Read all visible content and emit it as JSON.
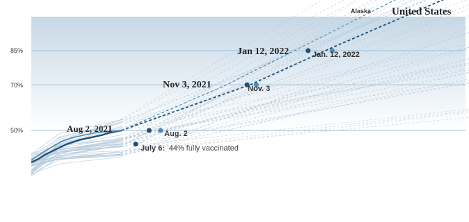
{
  "chart_data": {
    "type": "line",
    "y_ticks": [
      {
        "label": "85%",
        "value": 85
      },
      {
        "label": "70%",
        "value": 70
      },
      {
        "label": "50%",
        "value": 50
      }
    ],
    "ylim": [
      28,
      104
    ],
    "grid": true,
    "series": [
      {
        "name": "United States",
        "role": "dark",
        "color": "#1f4e79",
        "actual": [
          [
            0,
            36
          ],
          [
            10,
            37.5
          ],
          [
            20,
            39.5
          ],
          [
            30,
            41
          ],
          [
            40,
            42.5
          ],
          [
            50,
            44
          ],
          [
            60,
            45
          ],
          [
            70,
            46
          ],
          [
            85,
            47
          ],
          [
            100,
            48
          ],
          [
            110,
            49
          ],
          [
            127,
            50
          ]
        ],
        "projection": [
          [
            127,
            50
          ],
          [
            308,
            70
          ],
          [
            425,
            86.5
          ],
          [
            600,
            110
          ]
        ]
      },
      {
        "name": "Alaska",
        "role": "light",
        "color": "#4a8db5",
        "actual": [
          [
            0,
            37
          ],
          [
            10,
            39
          ],
          [
            20,
            41
          ],
          [
            30,
            43
          ],
          [
            45,
            45.5
          ],
          [
            60,
            47
          ],
          [
            75,
            48
          ],
          [
            90,
            49
          ],
          [
            110,
            49.5
          ],
          [
            127,
            50
          ]
        ],
        "projection": [
          [
            127,
            50
          ],
          [
            275,
            70
          ],
          [
            380,
            86.5
          ],
          [
            530,
            110
          ]
        ]
      }
    ],
    "points": [
      {
        "label": "Aug 2, 2021",
        "x": 166,
        "y": 50,
        "style": "serif"
      },
      {
        "label": "Aug. 2",
        "x": 182,
        "y": 50,
        "style": "sans"
      },
      {
        "label": "Nov 3, 2021",
        "x": 304,
        "y": 70,
        "style": "serif"
      },
      {
        "label": "Nov. 3",
        "x": 317,
        "y": 70,
        "style": "sans"
      },
      {
        "label": "Jan 12, 2022",
        "x": 390,
        "y": 85,
        "style": "serif"
      },
      {
        "label": "Jan. 12, 2022",
        "x": 424,
        "y": 85,
        "style": "sans"
      }
    ],
    "today": {
      "date_label": "July 6:",
      "text": "44% fully vaccinated",
      "x": 147,
      "y": 44
    }
  },
  "labels": {
    "united_states": "United States",
    "alaska": "Alaska",
    "aug2_serif": "Aug 2, 2021",
    "aug2_sans": "Aug. 2",
    "nov3_serif": "Nov 3, 2021",
    "nov3_sans": "Nov. 3",
    "jan12_serif": "Jan 12, 2022",
    "jan12_sans": "Jan. 12, 2022",
    "today_date": "July 6:",
    "today_text": "44% fully vaccinated"
  },
  "colors": {
    "band_top": "#c6d8e6",
    "band_bottom": "#ffffff",
    "grid": "#9fbbd0",
    "dark_series": "#1f4e79",
    "light_series": "#4a8db5",
    "state_lines": "#b4c8d8"
  }
}
